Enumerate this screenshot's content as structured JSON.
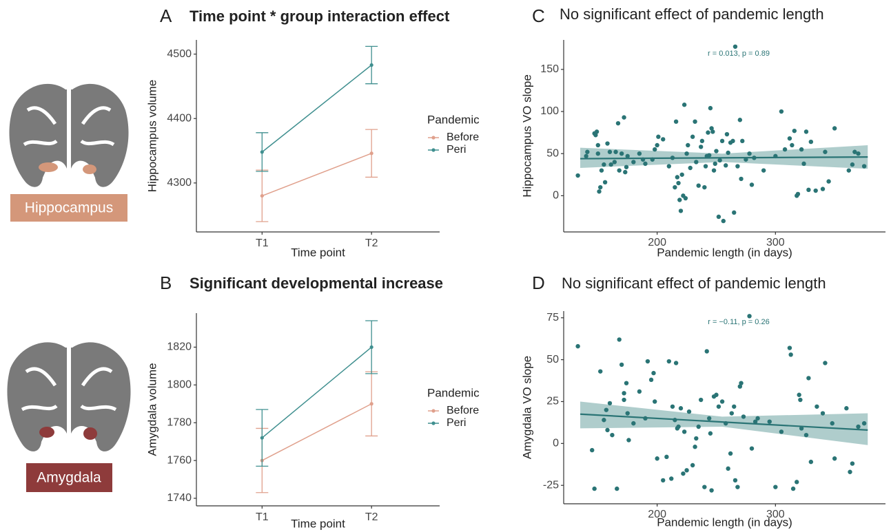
{
  "regions": [
    "Hippocampus",
    "Amygdala"
  ],
  "chart_data": [
    {
      "type": "line",
      "panel": "A",
      "title": "Time point * group interaction effect",
      "x_label": "Time point",
      "y_label": "Hippocampus volume",
      "categories": [
        "T1",
        "T2"
      ],
      "legend_title": "Pandemic",
      "series": [
        {
          "name": "Before",
          "color": "#e0a08c",
          "values": [
            4280,
            4346
          ],
          "errors": [
            40,
            37
          ]
        },
        {
          "name": "Peri",
          "color": "#3f8f8f",
          "values": [
            4348,
            4483
          ],
          "errors": [
            30,
            29
          ]
        }
      ],
      "ylim": [
        4224,
        4522
      ],
      "yticks": [
        4300,
        4400,
        4500
      ]
    },
    {
      "type": "line",
      "panel": "B",
      "title": "Significant developmental increase",
      "x_label": "Time point",
      "y_label": "Amygdala volume",
      "categories": [
        "T1",
        "T2"
      ],
      "legend_title": "Pandemic",
      "series": [
        {
          "name": "Before",
          "color": "#e0a08c",
          "values": [
            1760,
            1790
          ],
          "errors": [
            17,
            17
          ]
        },
        {
          "name": "Peri",
          "color": "#3f8f8f",
          "values": [
            1772,
            1820
          ],
          "errors": [
            15,
            14
          ]
        }
      ],
      "ylim": [
        1736,
        1838
      ],
      "yticks": [
        1740,
        1760,
        1780,
        1800,
        1820
      ]
    },
    {
      "type": "scatter",
      "panel": "C",
      "title": "No significant effect of pandemic length",
      "x_label": "Pandemic length (in days)",
      "y_label": "Hippocampus VO slope",
      "annotation": "r = 0.013, p = 0.89",
      "color": "#2a7475",
      "x": [
        133,
        140,
        141,
        147,
        148,
        149,
        150,
        150,
        151,
        152,
        153,
        155,
        156,
        158,
        160,
        161,
        164,
        165,
        167,
        168,
        170,
        172,
        173,
        174,
        175,
        180,
        185,
        188,
        190,
        196,
        198,
        200,
        201,
        205,
        210,
        213,
        215,
        216,
        217,
        218,
        219,
        220,
        221,
        222,
        223,
        224,
        225,
        226,
        228,
        230,
        232,
        233,
        235,
        237,
        238,
        240,
        241,
        242,
        243,
        244,
        245,
        246,
        247,
        248,
        249,
        250,
        252,
        253,
        255,
        256,
        258,
        259,
        260,
        262,
        264,
        265,
        266,
        268,
        270,
        271,
        272,
        275,
        278,
        280,
        282,
        290,
        300,
        305,
        308,
        312,
        314,
        316,
        318,
        319,
        322,
        324,
        326,
        328,
        330,
        334,
        340,
        342,
        345,
        350,
        362,
        365,
        367,
        370,
        375
      ],
      "y": [
        24,
        47,
        52,
        74,
        72,
        76,
        60,
        50,
        5,
        10,
        30,
        37,
        16,
        62,
        52,
        37,
        40,
        52,
        86,
        30,
        50,
        93,
        28,
        34,
        47,
        40,
        50,
        43,
        38,
        43,
        55,
        60,
        70,
        67,
        35,
        45,
        10,
        88,
        22,
        15,
        -5,
        -18,
        25,
        0,
        108,
        -3,
        50,
        60,
        33,
        70,
        88,
        40,
        12,
        58,
        65,
        10,
        35,
        47,
        75,
        48,
        104,
        80,
        76,
        30,
        38,
        53,
        -25,
        42,
        65,
        -30,
        36,
        73,
        51,
        63,
        65,
        -20,
        177,
        35,
        90,
        20,
        65,
        43,
        50,
        13,
        45,
        30,
        47,
        100,
        55,
        68,
        60,
        77,
        0,
        2,
        55,
        38,
        76,
        7,
        64,
        6,
        8,
        52,
        17,
        80,
        30,
        37,
        52,
        50,
        35
      ],
      "fit": {
        "x": [
          135,
          378
        ],
        "y": [
          44,
          46
        ]
      },
      "band_x": [
        135,
        255,
        378
      ],
      "band_lower": [
        33,
        40,
        32
      ],
      "band_upper": [
        57,
        50,
        60
      ],
      "xlim": [
        121,
        393
      ],
      "xticks": [
        200,
        300
      ],
      "ylim": [
        -43,
        185
      ],
      "yticks": [
        0,
        50,
        100,
        150
      ]
    },
    {
      "type": "scatter",
      "panel": "D",
      "title": "No significant effect of pandemic length",
      "x_label": "Pandemic length (in days)",
      "y_label": "Amygdala VO slope",
      "annotation": "r = −0.11, p = 0.26",
      "color": "#2a7475",
      "x": [
        133,
        145,
        147,
        152,
        155,
        157,
        158,
        160,
        162,
        166,
        168,
        170,
        172,
        172,
        174,
        175,
        176,
        180,
        185,
        190,
        192,
        195,
        197,
        198,
        200,
        205,
        208,
        210,
        212,
        213,
        215,
        216,
        217,
        218,
        220,
        222,
        223,
        225,
        227,
        230,
        232,
        233,
        235,
        237,
        240,
        242,
        244,
        245,
        246,
        248,
        250,
        252,
        255,
        258,
        260,
        262,
        263,
        265,
        266,
        268,
        270,
        271,
        273,
        278,
        280,
        283,
        285,
        295,
        300,
        305,
        312,
        313,
        315,
        318,
        320,
        321,
        322,
        326,
        328,
        330,
        335,
        340,
        342,
        348,
        350,
        360,
        363,
        365,
        370,
        375
      ],
      "y": [
        58,
        -4,
        -27,
        43,
        14,
        20,
        8,
        24,
        5,
        -27,
        62,
        47,
        30,
        26,
        36,
        18,
        2,
        12,
        31,
        15,
        49,
        38,
        42,
        25,
        -9,
        -22,
        -8,
        49,
        -21,
        22,
        14,
        48,
        9,
        10,
        21,
        -18,
        7,
        -16,
        19,
        -13,
        -2,
        3,
        10,
        26,
        -26,
        55,
        15,
        6,
        -28,
        28,
        29,
        22,
        25,
        12,
        -15,
        -6,
        18,
        22,
        -22,
        -26,
        34,
        36,
        16,
        76,
        -3,
        13,
        15,
        13,
        -26,
        7,
        57,
        53,
        -27,
        -23,
        29,
        26,
        9,
        5,
        39,
        -11,
        22,
        18,
        48,
        12,
        -9,
        21,
        -17,
        -12,
        10,
        12
      ],
      "fit": {
        "x": [
          135,
          378
        ],
        "y": [
          17.5,
          8
        ]
      },
      "band_x": [
        135,
        255,
        378
      ],
      "band_lower": [
        9,
        10,
        -1
      ],
      "band_upper": [
        25,
        16,
        18
      ],
      "xlim": [
        121,
        393
      ],
      "xticks": [
        200,
        300
      ],
      "ylim": [
        -36,
        79
      ],
      "yticks": [
        -25,
        0,
        25,
        50,
        75
      ]
    }
  ]
}
